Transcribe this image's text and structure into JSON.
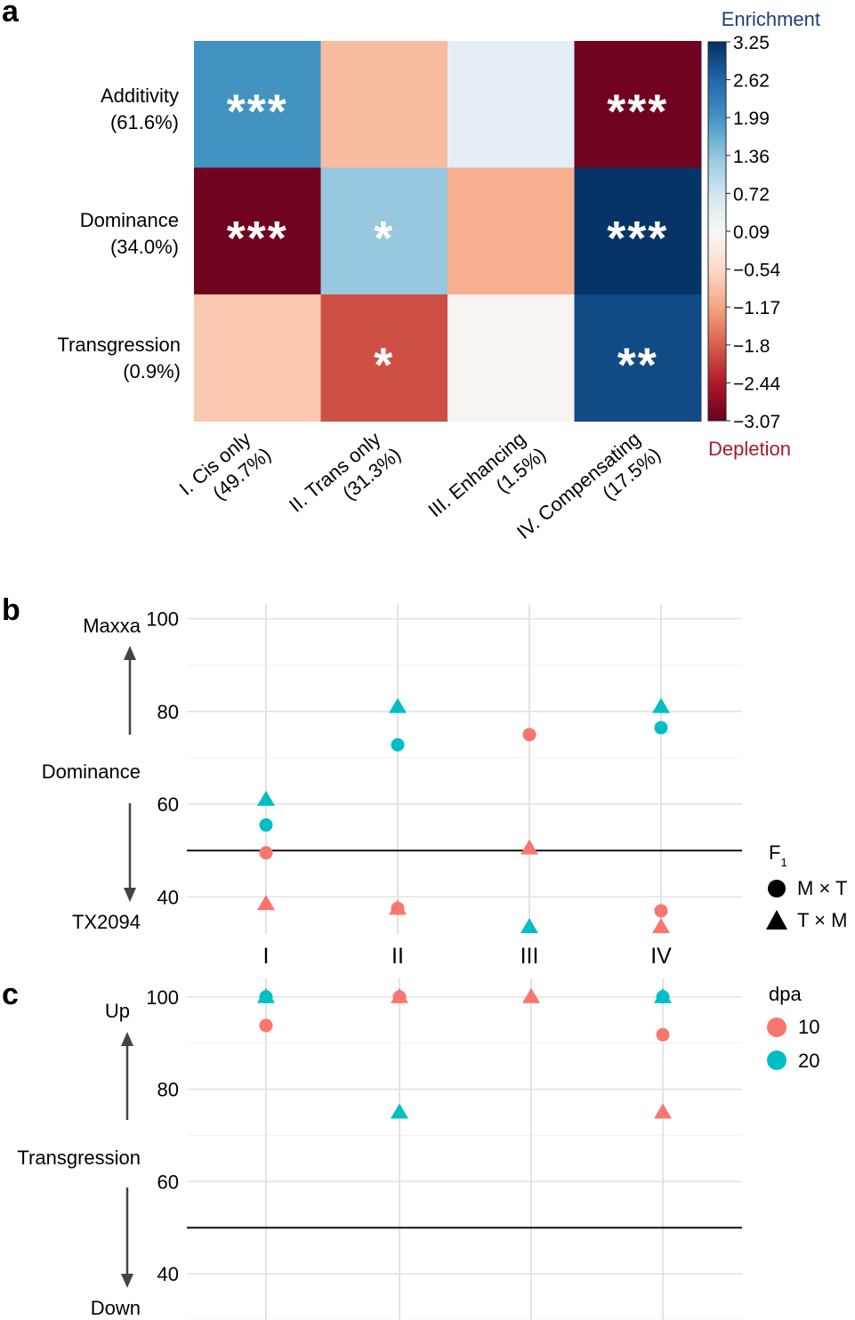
{
  "panel_labels": [
    "a",
    "b",
    "c"
  ],
  "chart_data": [
    {
      "panel": "a",
      "type": "heatmap",
      "rows": [
        "Additivity",
        "Dominance",
        "Transgression"
      ],
      "row_pct": [
        "(61.6%)",
        "(34.0%)",
        "(0.9%)"
      ],
      "columns": [
        {
          "line1": "I. Cis only",
          "line2": "(49.7%)"
        },
        {
          "line1": "II. Trans only",
          "line2": "(31.3%)"
        },
        {
          "line1": "III. Enhancing",
          "line2": "(1.5%)"
        },
        {
          "line1": "IV. Compensating",
          "line2": "(17.5%)"
        }
      ],
      "values": [
        [
          2.0,
          -0.9,
          0.4,
          -3.0
        ],
        [
          -3.0,
          1.3,
          -1.05,
          3.2
        ],
        [
          -0.75,
          -1.95,
          0.0,
          2.95
        ]
      ],
      "stars": [
        [
          "***",
          "",
          "",
          "***"
        ],
        [
          "***",
          "*",
          "",
          "***"
        ],
        [
          "",
          "*",
          "",
          "**"
        ]
      ],
      "colorbar": {
        "top_label": "Enrichment",
        "bottom_label": "Depletion",
        "ticks": [
          "3.25",
          "2.62",
          "1.99",
          "1.36",
          "0.72",
          "0.09",
          "−0.54",
          "−1.17",
          "−1.8",
          "−2.44",
          "−3.07"
        ],
        "min": -3.07,
        "max": 3.25,
        "colors": [
          "#67001f",
          "#b2182b",
          "#d6604d",
          "#f4a582",
          "#fddbc7",
          "#f7f7f7",
          "#d1e5f0",
          "#92c5de",
          "#4393c3",
          "#2166ac",
          "#053061"
        ]
      }
    },
    {
      "panel": "b",
      "type": "scatter",
      "categories": [
        "I",
        "II",
        "III",
        "IV"
      ],
      "ylim": [
        32,
        103
      ],
      "yticks": [
        "100",
        "80",
        "60",
        "40"
      ],
      "reference_line": 50,
      "side_labels": {
        "top": "Maxxa",
        "middle": "Dominance",
        "bottom": "TX2094"
      },
      "series": [
        {
          "name": "M × T, 10 dpa",
          "shape": "circle",
          "color": "#F8766D",
          "x": [
            "I",
            "II",
            "III",
            "IV"
          ],
          "y": [
            49.5,
            37.5,
            75.0,
            37.0
          ]
        },
        {
          "name": "M × T, 20 dpa",
          "shape": "circle",
          "color": "#00BFC4",
          "x": [
            "I",
            "II",
            "IV"
          ],
          "y": [
            55.5,
            72.8,
            76.5
          ]
        },
        {
          "name": "T × M, 10 dpa",
          "shape": "triangle",
          "color": "#F8766D",
          "x": [
            "I",
            "II",
            "III",
            "IV"
          ],
          "y": [
            38.5,
            37.5,
            50.5,
            33.5
          ]
        },
        {
          "name": "T × M, 20 dpa",
          "shape": "triangle",
          "color": "#00BFC4",
          "x": [
            "I",
            "II",
            "III",
            "IV"
          ],
          "y": [
            61.0,
            81.0,
            33.5,
            81.0
          ]
        }
      ]
    },
    {
      "panel": "c",
      "type": "scatter",
      "categories": [
        "I",
        "II",
        "III",
        "IV"
      ],
      "ylim": [
        30,
        104
      ],
      "yticks": [
        "100",
        "80",
        "60",
        "40"
      ],
      "reference_line": 50,
      "side_labels": {
        "top": "Up",
        "middle": "Transgression",
        "bottom": "Down"
      },
      "series": [
        {
          "name": "M × T, 10 dpa",
          "shape": "circle",
          "color": "#F8766D",
          "x": [
            "I",
            "II",
            "IV"
          ],
          "y": [
            93.8,
            100.0,
            91.8
          ]
        },
        {
          "name": "M × T, 20 dpa",
          "shape": "circle",
          "color": "#00BFC4",
          "x": [
            "I",
            "IV"
          ],
          "y": [
            100.0,
            100.0
          ]
        },
        {
          "name": "T × M, 10 dpa",
          "shape": "triangle",
          "color": "#F8766D",
          "x": [
            "II",
            "III",
            "IV"
          ],
          "y": [
            100.0,
            100.0,
            75.0
          ]
        },
        {
          "name": "T × M, 20 dpa",
          "shape": "triangle",
          "color": "#00BFC4",
          "x": [
            "I",
            "II",
            "IV"
          ],
          "y": [
            100.0,
            75.0,
            100.0
          ]
        }
      ]
    }
  ],
  "legends": {
    "shape": {
      "title": "F",
      "title_sub": "1",
      "items": [
        {
          "label": "M × T",
          "shape": "circle"
        },
        {
          "label": "T × M",
          "shape": "triangle"
        }
      ]
    },
    "color": {
      "title": "dpa",
      "items": [
        {
          "label": "10",
          "color": "#F8766D"
        },
        {
          "label": "20",
          "color": "#00BFC4"
        }
      ]
    }
  }
}
